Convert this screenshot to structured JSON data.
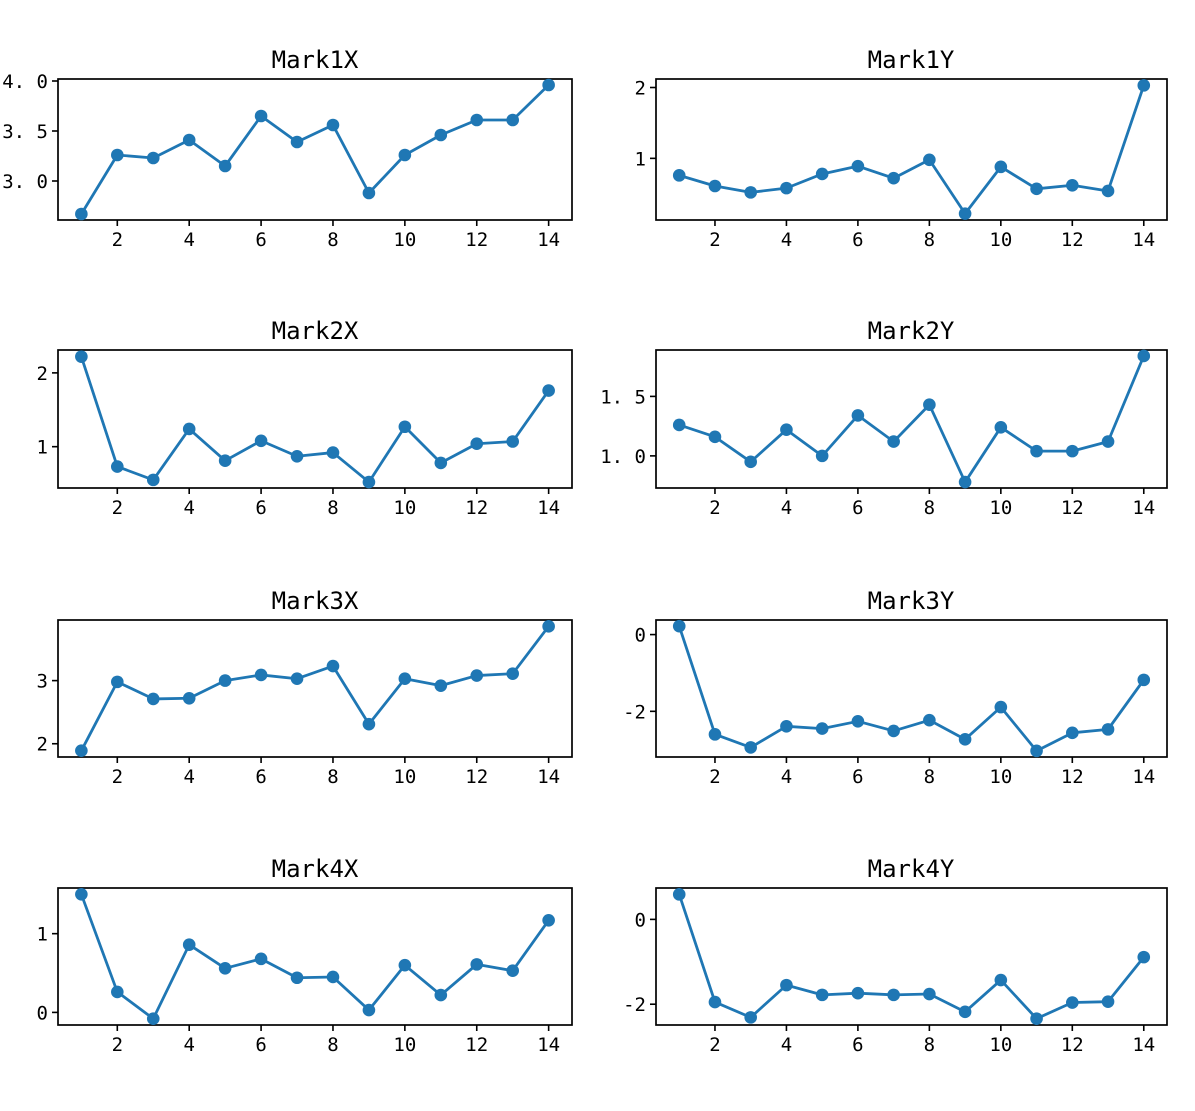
{
  "figure": {
    "background_color": "#ffffff",
    "axis_color": "#000000",
    "text_color": "#000000",
    "series_color": "#1f77b4",
    "subplot_grid": {
      "rows": 4,
      "cols": 2
    }
  },
  "chart_data": [
    {
      "type": "line",
      "title": "Mark1X",
      "color": "#1f77b4",
      "marker": "circle",
      "grid": false,
      "legend": null,
      "x": [
        1,
        2,
        3,
        4,
        5,
        6,
        7,
        8,
        9,
        10,
        11,
        12,
        13,
        14
      ],
      "values": [
        2.67,
        3.26,
        3.23,
        3.41,
        3.15,
        3.65,
        3.39,
        3.56,
        2.88,
        3.26,
        3.46,
        3.61,
        3.61,
        3.96
      ],
      "xlim": [
        0.35,
        14.65
      ],
      "ylim": [
        2.61,
        4.02
      ],
      "xticks": {
        "values": [
          2,
          4,
          6,
          8,
          10,
          12,
          14
        ],
        "labels": [
          "2",
          "4",
          "6",
          "8",
          "10",
          "12",
          "14"
        ]
      },
      "yticks": {
        "values": [
          3.0,
          3.5,
          4.0
        ],
        "labels": [
          "3. 0",
          "3. 5",
          "4. 0"
        ]
      }
    },
    {
      "type": "line",
      "title": "Mark1Y",
      "color": "#1f77b4",
      "marker": "circle",
      "grid": false,
      "legend": null,
      "x": [
        1,
        2,
        3,
        4,
        5,
        6,
        7,
        8,
        9,
        10,
        11,
        12,
        13,
        14
      ],
      "values": [
        0.76,
        0.61,
        0.52,
        0.58,
        0.78,
        0.89,
        0.72,
        0.98,
        0.22,
        0.88,
        0.57,
        0.62,
        0.54,
        2.03
      ],
      "xlim": [
        0.35,
        14.65
      ],
      "ylim": [
        0.13,
        2.12
      ],
      "xticks": {
        "values": [
          2,
          4,
          6,
          8,
          10,
          12,
          14
        ],
        "labels": [
          "2",
          "4",
          "6",
          "8",
          "10",
          "12",
          "14"
        ]
      },
      "yticks": {
        "values": [
          1,
          2
        ],
        "labels": [
          "1",
          "2"
        ]
      }
    },
    {
      "type": "line",
      "title": "Mark2X",
      "color": "#1f77b4",
      "marker": "circle",
      "grid": false,
      "legend": null,
      "x": [
        1,
        2,
        3,
        4,
        5,
        6,
        7,
        8,
        9,
        10,
        11,
        12,
        13,
        14
      ],
      "values": [
        2.22,
        0.73,
        0.55,
        1.24,
        0.81,
        1.08,
        0.87,
        0.92,
        0.52,
        1.27,
        0.78,
        1.04,
        1.07,
        1.76
      ],
      "xlim": [
        0.35,
        14.65
      ],
      "ylim": [
        0.44,
        2.31
      ],
      "xticks": {
        "values": [
          2,
          4,
          6,
          8,
          10,
          12,
          14
        ],
        "labels": [
          "2",
          "4",
          "6",
          "8",
          "10",
          "12",
          "14"
        ]
      },
      "yticks": {
        "values": [
          1,
          2
        ],
        "labels": [
          "1",
          "2"
        ]
      }
    },
    {
      "type": "line",
      "title": "Mark2Y",
      "color": "#1f77b4",
      "marker": "circle",
      "grid": false,
      "legend": null,
      "x": [
        1,
        2,
        3,
        4,
        5,
        6,
        7,
        8,
        9,
        10,
        11,
        12,
        13,
        14
      ],
      "values": [
        1.26,
        1.16,
        0.95,
        1.22,
        1.0,
        1.34,
        1.12,
        1.43,
        0.78,
        1.24,
        1.04,
        1.04,
        1.12,
        1.84
      ],
      "xlim": [
        0.35,
        14.65
      ],
      "ylim": [
        0.73,
        1.89
      ],
      "xticks": {
        "values": [
          2,
          4,
          6,
          8,
          10,
          12,
          14
        ],
        "labels": [
          "2",
          "4",
          "6",
          "8",
          "10",
          "12",
          "14"
        ]
      },
      "yticks": {
        "values": [
          1.0,
          1.5
        ],
        "labels": [
          "1. 0",
          "1. 5"
        ]
      }
    },
    {
      "type": "line",
      "title": "Mark3X",
      "color": "#1f77b4",
      "marker": "circle",
      "grid": false,
      "legend": null,
      "x": [
        1,
        2,
        3,
        4,
        5,
        6,
        7,
        8,
        9,
        10,
        11,
        12,
        13,
        14
      ],
      "values": [
        1.89,
        2.98,
        2.71,
        2.72,
        3.0,
        3.09,
        3.03,
        3.23,
        2.31,
        3.03,
        2.92,
        3.08,
        3.11,
        3.86
      ],
      "xlim": [
        0.35,
        14.65
      ],
      "ylim": [
        1.79,
        3.96
      ],
      "xticks": {
        "values": [
          2,
          4,
          6,
          8,
          10,
          12,
          14
        ],
        "labels": [
          "2",
          "4",
          "6",
          "8",
          "10",
          "12",
          "14"
        ]
      },
      "yticks": {
        "values": [
          2,
          3
        ],
        "labels": [
          "2",
          "3"
        ]
      }
    },
    {
      "type": "line",
      "title": "Mark3Y",
      "color": "#1f77b4",
      "marker": "circle",
      "grid": false,
      "legend": null,
      "x": [
        1,
        2,
        3,
        4,
        5,
        6,
        7,
        8,
        9,
        10,
        11,
        12,
        13,
        14
      ],
      "values": [
        0.22,
        -2.6,
        -2.94,
        -2.39,
        -2.45,
        -2.26,
        -2.51,
        -2.23,
        -2.73,
        -1.89,
        -3.03,
        -2.56,
        -2.47,
        -1.18
      ],
      "xlim": [
        0.35,
        14.65
      ],
      "ylim": [
        -3.19,
        0.38
      ],
      "xticks": {
        "values": [
          2,
          4,
          6,
          8,
          10,
          12,
          14
        ],
        "labels": [
          "2",
          "4",
          "6",
          "8",
          "10",
          "12",
          "14"
        ]
      },
      "yticks": {
        "values": [
          -2,
          0
        ],
        "labels": [
          "-2",
          "0"
        ]
      }
    },
    {
      "type": "line",
      "title": "Mark4X",
      "color": "#1f77b4",
      "marker": "circle",
      "grid": false,
      "legend": null,
      "x": [
        1,
        2,
        3,
        4,
        5,
        6,
        7,
        8,
        9,
        10,
        11,
        12,
        13,
        14
      ],
      "values": [
        1.5,
        0.26,
        -0.08,
        0.86,
        0.56,
        0.68,
        0.44,
        0.45,
        0.03,
        0.6,
        0.22,
        0.61,
        0.53,
        1.17
      ],
      "xlim": [
        0.35,
        14.65
      ],
      "ylim": [
        -0.16,
        1.58
      ],
      "xticks": {
        "values": [
          2,
          4,
          6,
          8,
          10,
          12,
          14
        ],
        "labels": [
          "2",
          "4",
          "6",
          "8",
          "10",
          "12",
          "14"
        ]
      },
      "yticks": {
        "values": [
          0,
          1
        ],
        "labels": [
          "0",
          "1"
        ]
      }
    },
    {
      "type": "line",
      "title": "Mark4Y",
      "color": "#1f77b4",
      "marker": "circle",
      "grid": false,
      "legend": null,
      "x": [
        1,
        2,
        3,
        4,
        5,
        6,
        7,
        8,
        9,
        10,
        11,
        12,
        13,
        14
      ],
      "values": [
        0.59,
        -1.95,
        -2.31,
        -1.55,
        -1.78,
        -1.74,
        -1.78,
        -1.76,
        -2.18,
        -1.43,
        -2.34,
        -1.96,
        -1.94,
        -0.89
      ],
      "xlim": [
        0.35,
        14.65
      ],
      "ylim": [
        -2.49,
        0.74
      ],
      "xticks": {
        "values": [
          2,
          4,
          6,
          8,
          10,
          12,
          14
        ],
        "labels": [
          "2",
          "4",
          "6",
          "8",
          "10",
          "12",
          "14"
        ]
      },
      "yticks": {
        "values": [
          -2,
          0
        ],
        "labels": [
          "-2",
          "0"
        ]
      }
    }
  ]
}
